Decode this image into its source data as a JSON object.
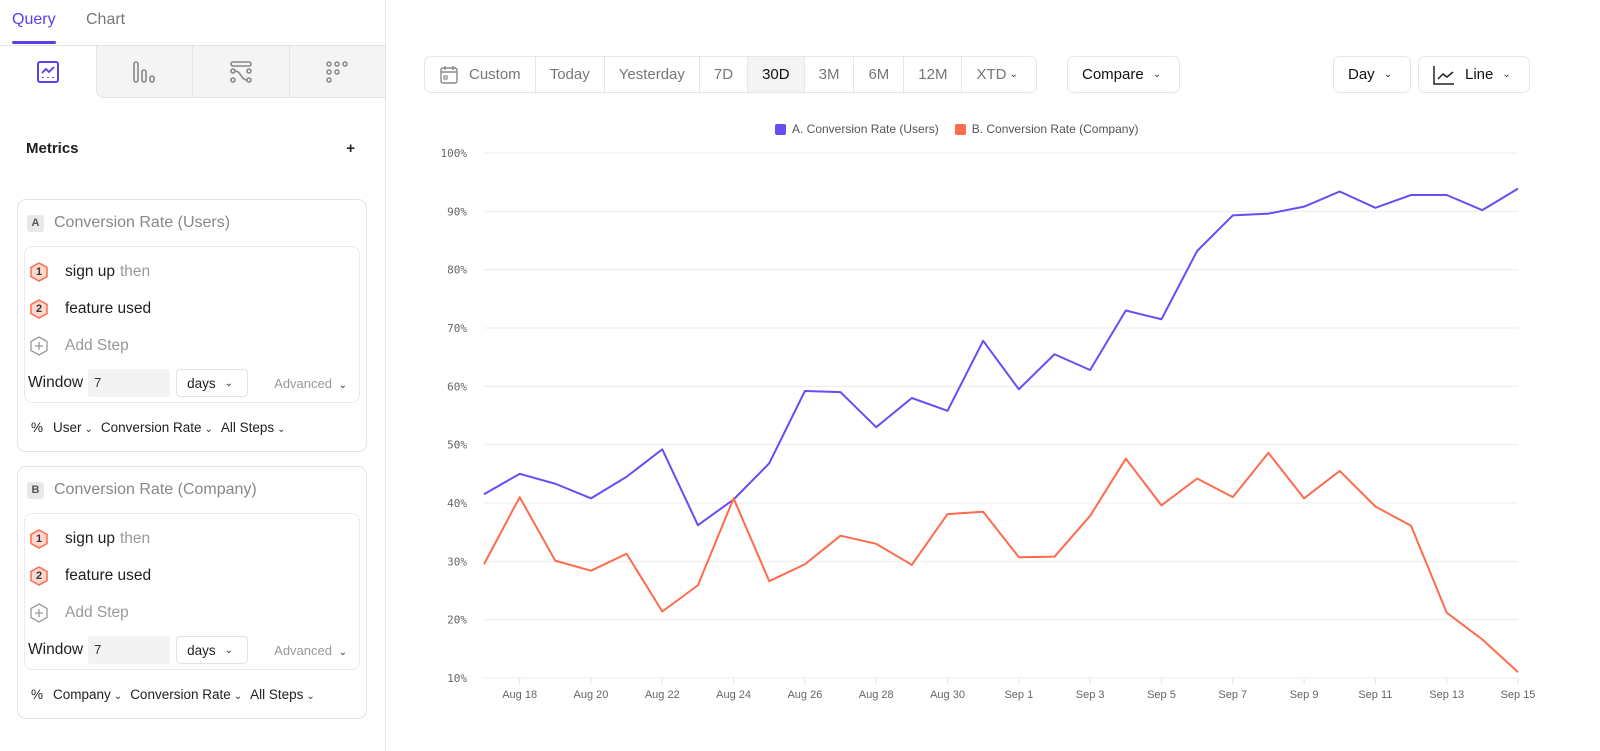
{
  "tabs": [
    "Query",
    "Chart"
  ],
  "chart_types": [
    {
      "icon": "insights-icon",
      "active": true
    },
    {
      "icon": "funnels-icon"
    },
    {
      "icon": "flows-icon"
    },
    {
      "icon": "retention-icon"
    }
  ],
  "metrics_title": "Metrics",
  "metrics": [
    {
      "letter": "A",
      "title": "Conversion Rate (Users)",
      "steps": [
        {
          "n": "1",
          "label": "sign up",
          "suffix": "then"
        },
        {
          "n": "2",
          "label": "feature used"
        }
      ],
      "add_step": "Add Step",
      "window_label": "Window",
      "window_value": "7",
      "unit": "days",
      "advanced": "Advanced",
      "footer": [
        "%",
        "User",
        "Conversion Rate",
        "All Steps"
      ]
    },
    {
      "letter": "B",
      "title": "Conversion Rate (Company)",
      "steps": [
        {
          "n": "1",
          "label": "sign up",
          "suffix": "then"
        },
        {
          "n": "2",
          "label": "feature used"
        }
      ],
      "add_step": "Add Step",
      "window_label": "Window",
      "window_value": "7",
      "unit": "days",
      "advanced": "Advanced",
      "footer": [
        "%",
        "Company",
        "Conversion Rate",
        "All Steps"
      ]
    }
  ],
  "toolbar": {
    "ranges": [
      "Custom",
      "Today",
      "Yesterday",
      "7D",
      "30D",
      "3M",
      "6M",
      "12M",
      "XTD"
    ],
    "active": "30D",
    "compare": "Compare",
    "interval": "Day",
    "chart_type": "Line"
  },
  "colors": {
    "accent": "#5b3fe8",
    "series_a": "#6a4cf5",
    "series_b": "#fe6b4d"
  },
  "chart_data": {
    "type": "line",
    "x": [
      "Aug 17",
      "Aug 18",
      "Aug 19",
      "Aug 20",
      "Aug 21",
      "Aug 22",
      "Aug 23",
      "Aug 24",
      "Aug 25",
      "Aug 26",
      "Aug 27",
      "Aug 28",
      "Aug 29",
      "Aug 30",
      "Aug 31",
      "Sep 1",
      "Sep 2",
      "Sep 3",
      "Sep 4",
      "Sep 5",
      "Sep 6",
      "Sep 7",
      "Sep 8",
      "Sep 9",
      "Sep 10",
      "Sep 11",
      "Sep 12",
      "Sep 13",
      "Sep 14",
      "Sep 15"
    ],
    "xticks": [
      "Aug 18",
      "Aug 20",
      "Aug 22",
      "Aug 24",
      "Aug 26",
      "Aug 28",
      "Aug 30",
      "Sep 1",
      "Sep 3",
      "Sep 5",
      "Sep 7",
      "Sep 9",
      "Sep 11",
      "Sep 13",
      "Sep 15"
    ],
    "yticks": [
      "100%",
      "90%",
      "80%",
      "70%",
      "60%",
      "50%",
      "40%",
      "30%",
      "20%",
      "10%"
    ],
    "ylim": [
      10,
      100
    ],
    "grid": true,
    "legend": "top",
    "series": [
      {
        "name": "A. Conversion Rate (Users)",
        "values": [
          41.5,
          45,
          43.3,
          40.8,
          44.5,
          49.2,
          36.2,
          40.6,
          46.8,
          59.2,
          59,
          53,
          58,
          55.8,
          67.8,
          59.5,
          65.5,
          62.8,
          73,
          71.5,
          83.2,
          89.3,
          89.6,
          90.8,
          93.4,
          90.6,
          92.8,
          92.8,
          90.2,
          93.9
        ]
      },
      {
        "name": "B. Conversion Rate (Company)",
        "values": [
          29.5,
          41,
          30.1,
          28.4,
          31.3,
          21.4,
          25.9,
          40.8,
          26.6,
          29.5,
          34.4,
          33,
          29.4,
          38.1,
          38.5,
          30.7,
          30.8,
          37.8,
          47.6,
          39.6,
          44.2,
          41,
          48.6,
          40.8,
          45.5,
          39.4,
          36.1,
          21.2,
          16.6,
          11
        ]
      }
    ]
  }
}
